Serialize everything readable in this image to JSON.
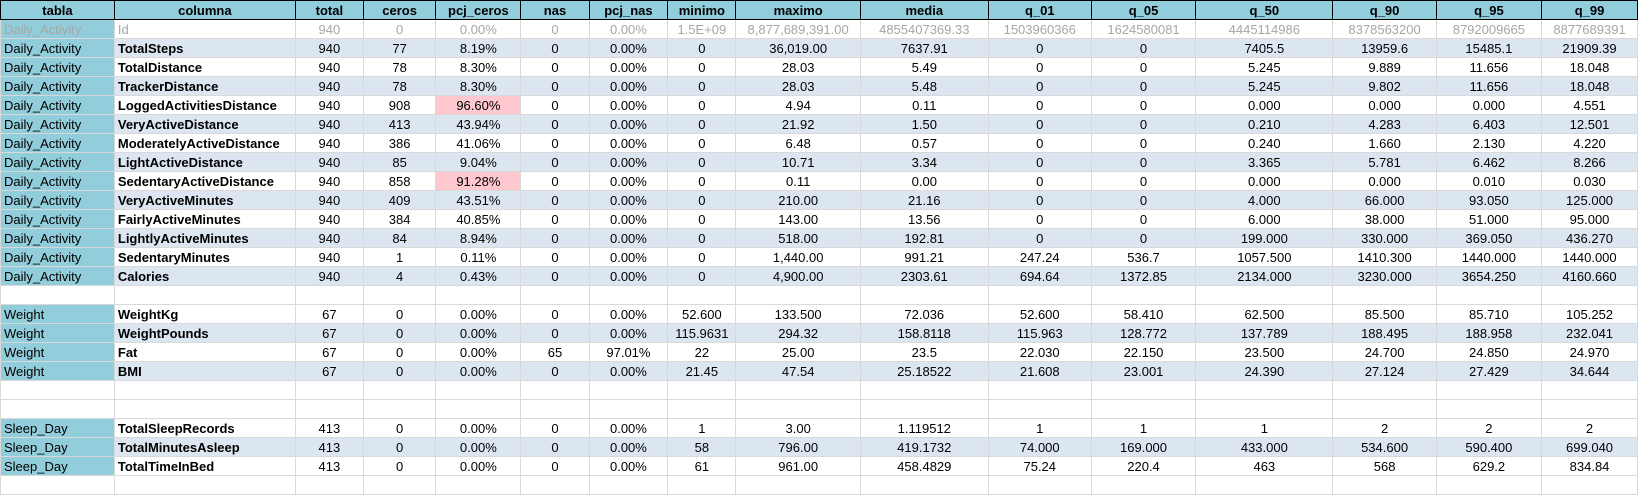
{
  "headers": [
    "tabla",
    "columna",
    "total",
    "ceros",
    "pcj_ceros",
    "nas",
    "pcj_nas",
    "minimo",
    "maximo",
    "media",
    "q_01",
    "q_05",
    "q_50",
    "q_90",
    "q_95",
    "q_99"
  ],
  "rows": [
    {
      "tabla": "Daily_Activity",
      "columna": "Id",
      "total": "940",
      "ceros": "0",
      "pcj_ceros": "0.00%",
      "nas": "0",
      "pcj_nas": "0.00%",
      "minimo": "1.5E+09",
      "maximo": "8,877,689,391.00",
      "media": "4855407369.33",
      "q_01": "1503960366",
      "q_05": "1624580081",
      "q_50": "4445114986",
      "q_90": "8378563200",
      "q_95": "8792009665",
      "q_99": "8877689391"
    },
    {
      "tabla": "Daily_Activity",
      "columna": "TotalSteps",
      "total": "940",
      "ceros": "77",
      "pcj_ceros": "8.19%",
      "nas": "0",
      "pcj_nas": "0.00%",
      "minimo": "0",
      "maximo": "36,019.00",
      "media": "7637.91",
      "q_01": "0",
      "q_05": "0",
      "q_50": "7405.5",
      "q_90": "13959.6",
      "q_95": "15485.1",
      "q_99": "21909.39"
    },
    {
      "tabla": "Daily_Activity",
      "columna": "TotalDistance",
      "total": "940",
      "ceros": "78",
      "pcj_ceros": "8.30%",
      "nas": "0",
      "pcj_nas": "0.00%",
      "minimo": "0",
      "maximo": "28.03",
      "media": "5.49",
      "q_01": "0",
      "q_05": "0",
      "q_50": "5.245",
      "q_90": "9.889",
      "q_95": "11.656",
      "q_99": "18.048"
    },
    {
      "tabla": "Daily_Activity",
      "columna": "TrackerDistance",
      "total": "940",
      "ceros": "78",
      "pcj_ceros": "8.30%",
      "nas": "0",
      "pcj_nas": "0.00%",
      "minimo": "0",
      "maximo": "28.03",
      "media": "5.48",
      "q_01": "0",
      "q_05": "0",
      "q_50": "5.245",
      "q_90": "9.802",
      "q_95": "11.656",
      "q_99": "18.048"
    },
    {
      "tabla": "Daily_Activity",
      "columna": "LoggedActivitiesDistance",
      "total": "940",
      "ceros": "908",
      "pcj_ceros": "96.60%",
      "nas": "0",
      "pcj_nas": "0.00%",
      "minimo": "0",
      "maximo": "4.94",
      "media": "0.11",
      "q_01": "0",
      "q_05": "0",
      "q_50": "0.000",
      "q_90": "0.000",
      "q_95": "0.000",
      "q_99": "4.551"
    },
    {
      "tabla": "Daily_Activity",
      "columna": "VeryActiveDistance",
      "total": "940",
      "ceros": "413",
      "pcj_ceros": "43.94%",
      "nas": "0",
      "pcj_nas": "0.00%",
      "minimo": "0",
      "maximo": "21.92",
      "media": "1.50",
      "q_01": "0",
      "q_05": "0",
      "q_50": "0.210",
      "q_90": "4.283",
      "q_95": "6.403",
      "q_99": "12.501"
    },
    {
      "tabla": "Daily_Activity",
      "columna": "ModeratelyActiveDistance",
      "total": "940",
      "ceros": "386",
      "pcj_ceros": "41.06%",
      "nas": "0",
      "pcj_nas": "0.00%",
      "minimo": "0",
      "maximo": "6.48",
      "media": "0.57",
      "q_01": "0",
      "q_05": "0",
      "q_50": "0.240",
      "q_90": "1.660",
      "q_95": "2.130",
      "q_99": "4.220"
    },
    {
      "tabla": "Daily_Activity",
      "columna": "LightActiveDistance",
      "total": "940",
      "ceros": "85",
      "pcj_ceros": "9.04%",
      "nas": "0",
      "pcj_nas": "0.00%",
      "minimo": "0",
      "maximo": "10.71",
      "media": "3.34",
      "q_01": "0",
      "q_05": "0",
      "q_50": "3.365",
      "q_90": "5.781",
      "q_95": "6.462",
      "q_99": "8.266"
    },
    {
      "tabla": "Daily_Activity",
      "columna": "SedentaryActiveDistance",
      "total": "940",
      "ceros": "858",
      "pcj_ceros": "91.28%",
      "nas": "0",
      "pcj_nas": "0.00%",
      "minimo": "0",
      "maximo": "0.11",
      "media": "0.00",
      "q_01": "0",
      "q_05": "0",
      "q_50": "0.000",
      "q_90": "0.000",
      "q_95": "0.010",
      "q_99": "0.030"
    },
    {
      "tabla": "Daily_Activity",
      "columna": "VeryActiveMinutes",
      "total": "940",
      "ceros": "409",
      "pcj_ceros": "43.51%",
      "nas": "0",
      "pcj_nas": "0.00%",
      "minimo": "0",
      "maximo": "210.00",
      "media": "21.16",
      "q_01": "0",
      "q_05": "0",
      "q_50": "4.000",
      "q_90": "66.000",
      "q_95": "93.050",
      "q_99": "125.000"
    },
    {
      "tabla": "Daily_Activity",
      "columna": "FairlyActiveMinutes",
      "total": "940",
      "ceros": "384",
      "pcj_ceros": "40.85%",
      "nas": "0",
      "pcj_nas": "0.00%",
      "minimo": "0",
      "maximo": "143.00",
      "media": "13.56",
      "q_01": "0",
      "q_05": "0",
      "q_50": "6.000",
      "q_90": "38.000",
      "q_95": "51.000",
      "q_99": "95.000"
    },
    {
      "tabla": "Daily_Activity",
      "columna": "LightlyActiveMinutes",
      "total": "940",
      "ceros": "84",
      "pcj_ceros": "8.94%",
      "nas": "0",
      "pcj_nas": "0.00%",
      "minimo": "0",
      "maximo": "518.00",
      "media": "192.81",
      "q_01": "0",
      "q_05": "0",
      "q_50": "199.000",
      "q_90": "330.000",
      "q_95": "369.050",
      "q_99": "436.270"
    },
    {
      "tabla": "Daily_Activity",
      "columna": "SedentaryMinutes",
      "total": "940",
      "ceros": "1",
      "pcj_ceros": "0.11%",
      "nas": "0",
      "pcj_nas": "0.00%",
      "minimo": "0",
      "maximo": "1,440.00",
      "media": "991.21",
      "q_01": "247.24",
      "q_05": "536.7",
      "q_50": "1057.500",
      "q_90": "1410.300",
      "q_95": "1440.000",
      "q_99": "1440.000"
    },
    {
      "tabla": "Daily_Activity",
      "columna": "Calories",
      "total": "940",
      "ceros": "4",
      "pcj_ceros": "0.43%",
      "nas": "0",
      "pcj_nas": "0.00%",
      "minimo": "0",
      "maximo": "4,900.00",
      "media": "2303.61",
      "q_01": "694.64",
      "q_05": "1372.85",
      "q_50": "2134.000",
      "q_90": "3230.000",
      "q_95": "3654.250",
      "q_99": "4160.660"
    },
    {
      "blank": true
    },
    {
      "tabla": "Weight",
      "columna": "WeightKg",
      "total": "67",
      "ceros": "0",
      "pcj_ceros": "0.00%",
      "nas": "0",
      "pcj_nas": "0.00%",
      "minimo": "52.600",
      "maximo": "133.500",
      "media": "72.036",
      "q_01": "52.600",
      "q_05": "58.410",
      "q_50": "62.500",
      "q_90": "85.500",
      "q_95": "85.710",
      "q_99": "105.252"
    },
    {
      "tabla": "Weight",
      "columna": "WeightPounds",
      "total": "67",
      "ceros": "0",
      "pcj_ceros": "0.00%",
      "nas": "0",
      "pcj_nas": "0.00%",
      "minimo": "115.9631",
      "maximo": "294.32",
      "media": "158.8118",
      "q_01": "115.963",
      "q_05": "128.772",
      "q_50": "137.789",
      "q_90": "188.495",
      "q_95": "188.958",
      "q_99": "232.041"
    },
    {
      "tabla": "Weight",
      "columna": "Fat",
      "total": "67",
      "ceros": "0",
      "pcj_ceros": "0.00%",
      "nas": "65",
      "pcj_nas": "97.01%",
      "minimo": "22",
      "maximo": "25.00",
      "media": "23.5",
      "q_01": "22.030",
      "q_05": "22.150",
      "q_50": "23.500",
      "q_90": "24.700",
      "q_95": "24.850",
      "q_99": "24.970"
    },
    {
      "tabla": "Weight",
      "columna": "BMI",
      "total": "67",
      "ceros": "0",
      "pcj_ceros": "0.00%",
      "nas": "0",
      "pcj_nas": "0.00%",
      "minimo": "21.45",
      "maximo": "47.54",
      "media": "25.18522",
      "q_01": "21.608",
      "q_05": "23.001",
      "q_50": "24.390",
      "q_90": "27.124",
      "q_95": "27.429",
      "q_99": "34.644"
    },
    {
      "blank": true
    },
    {
      "blank": true
    },
    {
      "tabla": "Sleep_Day",
      "columna": "TotalSleepRecords",
      "total": "413",
      "ceros": "0",
      "pcj_ceros": "0.00%",
      "nas": "0",
      "pcj_nas": "0.00%",
      "minimo": "1",
      "maximo": "3.00",
      "media": "1.119512",
      "q_01": "1",
      "q_05": "1",
      "q_50": "1",
      "q_90": "2",
      "q_95": "2",
      "q_99": "2"
    },
    {
      "tabla": "Sleep_Day",
      "columna": "TotalMinutesAsleep",
      "total": "413",
      "ceros": "0",
      "pcj_ceros": "0.00%",
      "nas": "0",
      "pcj_nas": "0.00%",
      "minimo": "58",
      "maximo": "796.00",
      "media": "419.1732",
      "q_01": "74.000",
      "q_05": "169.000",
      "q_50": "433.000",
      "q_90": "534.600",
      "q_95": "590.400",
      "q_99": "699.040"
    },
    {
      "tabla": "Sleep_Day",
      "columna": "TotalTimeInBed",
      "total": "413",
      "ceros": "0",
      "pcj_ceros": "0.00%",
      "nas": "0",
      "pcj_nas": "0.00%",
      "minimo": "61",
      "maximo": "961.00",
      "media": "458.4829",
      "q_01": "75.24",
      "q_05": "220.4",
      "q_50": "463",
      "q_90": "568",
      "q_95": "629.2",
      "q_99": "834.84"
    },
    {
      "blank": true
    }
  ],
  "colors": {
    "header_bg": "#92cddc",
    "band_bg": "#dce6f1",
    "highlight_bg": "#ffc7ce",
    "muted_text": "#a6a6a6"
  }
}
